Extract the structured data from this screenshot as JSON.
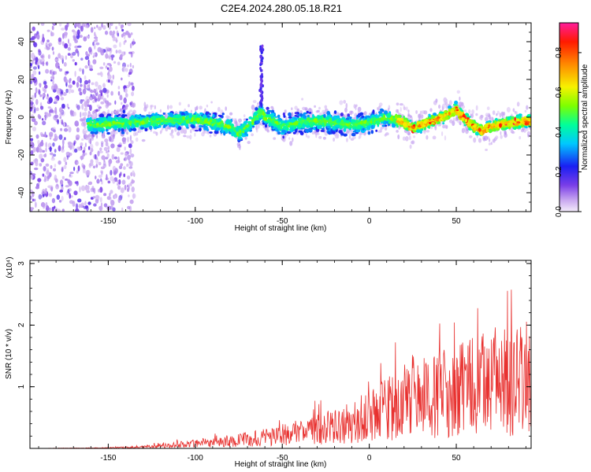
{
  "title": "C2E4.2024.280.05.18.R21",
  "chart_data": [
    {
      "type": "heatmap",
      "title": "C2E4.2024.280.05.18.R21",
      "xlabel": "Height of straight line (km)",
      "ylabel": "Frequency (Hz)",
      "xlim": [
        -195,
        93
      ],
      "ylim": [
        -50,
        50
      ],
      "xticks": [
        -150,
        -100,
        -50,
        0,
        50
      ],
      "yticks": [
        -40,
        -20,
        0,
        20,
        40
      ],
      "colorbar": {
        "label": "Normalized spectral amplitude",
        "range": [
          0,
          0.95
        ],
        "ticks": [
          0.0,
          0.2,
          0.4,
          0.6,
          0.8
        ],
        "tick_labels": [
          "0.0",
          "0.2",
          "0.4",
          "0.6",
          "0.8"
        ]
      },
      "ridge": {
        "x": [
          -160,
          -140,
          -120,
          -100,
          -80,
          -75,
          -70,
          -65,
          -62,
          -60,
          -55,
          -50,
          -40,
          -30,
          -20,
          -10,
          0,
          10,
          20,
          25,
          30,
          40,
          50,
          55,
          60,
          65,
          70,
          80,
          93
        ],
        "y": [
          -4,
          -3,
          -2,
          -1,
          -5,
          -9,
          -5,
          0,
          3,
          0,
          -2,
          -5,
          -3,
          -2,
          -3,
          -4,
          -3,
          0,
          -3,
          -6,
          -4,
          -1,
          4,
          -1,
          -5,
          -7,
          -5,
          -3,
          -2
        ]
      },
      "grid": false
    },
    {
      "type": "line",
      "xlabel": "Height of straight line (km)",
      "ylabel": "SNR (10 * v/v)",
      "y_multiplier_label": "(x10⁴)",
      "xlim": [
        -195,
        93
      ],
      "ylim": [
        0,
        3.05
      ],
      "xticks": [
        -150,
        -100,
        -50,
        0,
        50
      ],
      "yticks": [
        1,
        2,
        3
      ],
      "series": [
        {
          "color": "#e8312f",
          "x": [
            -195,
            -170,
            -150,
            -130,
            -115,
            -100,
            -90,
            -80,
            -70,
            -60,
            -50,
            -40,
            -30,
            -20,
            -10,
            0,
            5,
            10,
            15,
            20,
            25,
            30,
            35,
            40,
            45,
            50,
            55,
            60,
            65,
            70,
            75,
            80,
            85,
            93
          ],
          "y": [
            0.0,
            0.005,
            0.01,
            0.03,
            0.06,
            0.1,
            0.13,
            0.15,
            0.18,
            0.22,
            0.27,
            0.33,
            0.38,
            0.45,
            0.55,
            0.68,
            0.72,
            0.8,
            0.9,
            0.95,
            1.05,
            1.0,
            1.1,
            1.1,
            1.15,
            1.2,
            1.2,
            1.25,
            1.35,
            1.3,
            1.25,
            1.3,
            1.4,
            1.45
          ]
        }
      ],
      "grid": false
    }
  ]
}
